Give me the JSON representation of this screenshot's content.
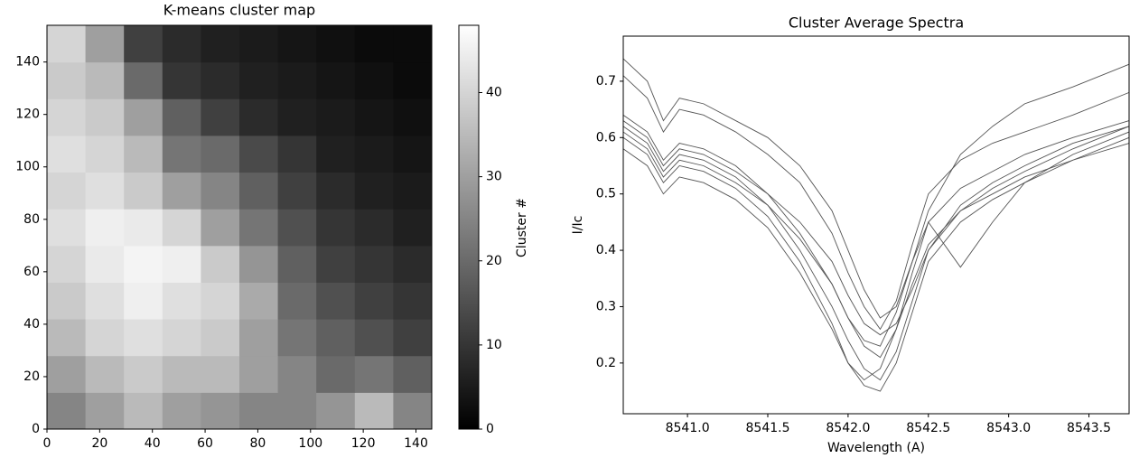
{
  "chart_data": [
    {
      "type": "heatmap",
      "title": "K-means cluster map",
      "colorbar_label": "Cluster #",
      "xlim": [
        0,
        146
      ],
      "ylim": [
        0,
        154
      ],
      "xticks": [
        0,
        20,
        40,
        60,
        80,
        100,
        120,
        140
      ],
      "yticks": [
        0,
        20,
        40,
        60,
        80,
        100,
        120,
        140
      ],
      "clim": [
        0,
        48
      ],
      "cticks": [
        0,
        10,
        20,
        30,
        40
      ],
      "colormap": "gray",
      "values": [
        [
          25,
          30,
          35,
          30,
          28,
          25,
          25,
          28,
          35,
          25
        ],
        [
          30,
          35,
          38,
          35,
          35,
          30,
          25,
          20,
          22,
          18
        ],
        [
          35,
          40,
          42,
          40,
          38,
          30,
          22,
          18,
          15,
          12
        ],
        [
          38,
          42,
          45,
          42,
          40,
          32,
          20,
          15,
          12,
          10
        ],
        [
          40,
          44,
          46,
          45,
          38,
          28,
          18,
          12,
          10,
          8
        ],
        [
          42,
          45,
          44,
          40,
          30,
          22,
          15,
          10,
          8,
          6
        ],
        [
          40,
          42,
          38,
          30,
          25,
          18,
          12,
          8,
          6,
          5
        ],
        [
          42,
          40,
          35,
          22,
          20,
          14,
          10,
          6,
          5,
          4
        ],
        [
          40,
          38,
          30,
          18,
          12,
          8,
          6,
          5,
          4,
          3
        ],
        [
          38,
          35,
          20,
          10,
          8,
          6,
          5,
          4,
          3,
          2
        ],
        [
          40,
          30,
          12,
          8,
          6,
          5,
          4,
          3,
          2,
          2
        ]
      ]
    },
    {
      "type": "line",
      "title": "Cluster Average Spectra",
      "x_label": "Wavelength (A)",
      "y_label": "I/Ic",
      "xlim": [
        8540.6,
        8543.75
      ],
      "ylim": [
        0.11,
        0.78
      ],
      "xticks": [
        {
          "value": 8541.0,
          "label": "8541.0"
        },
        {
          "value": 8541.5,
          "label": "8541.5"
        },
        {
          "value": 8542.0,
          "label": "8542.0"
        },
        {
          "value": 8542.5,
          "label": "8542.5"
        },
        {
          "value": 8543.0,
          "label": "8543.0"
        },
        {
          "value": 8543.5,
          "label": "8543.5"
        }
      ],
      "yticks": [
        0.2,
        0.3,
        0.4,
        0.5,
        0.6,
        0.7
      ],
      "x": [
        8540.6,
        8540.75,
        8540.85,
        8540.95,
        8541.1,
        8541.3,
        8541.5,
        8541.7,
        8541.9,
        8542.0,
        8542.1,
        8542.2,
        8542.3,
        8542.4,
        8542.5,
        8542.7,
        8542.9,
        8543.1,
        8543.4,
        8543.75
      ],
      "series": [
        {
          "color": "#555555",
          "values": [
            0.74,
            0.7,
            0.63,
            0.67,
            0.66,
            0.63,
            0.6,
            0.55,
            0.47,
            0.4,
            0.33,
            0.28,
            0.3,
            0.38,
            0.47,
            0.57,
            0.62,
            0.66,
            0.69,
            0.73
          ]
        },
        {
          "color": "#555555",
          "values": [
            0.71,
            0.67,
            0.61,
            0.65,
            0.64,
            0.61,
            0.57,
            0.52,
            0.43,
            0.36,
            0.3,
            0.26,
            0.31,
            0.41,
            0.5,
            0.56,
            0.59,
            0.61,
            0.64,
            0.68
          ]
        },
        {
          "color": "#555555",
          "values": [
            0.64,
            0.61,
            0.56,
            0.59,
            0.58,
            0.55,
            0.5,
            0.43,
            0.34,
            0.28,
            0.23,
            0.21,
            0.26,
            0.36,
            0.45,
            0.51,
            0.54,
            0.57,
            0.6,
            0.63
          ]
        },
        {
          "color": "#555555",
          "values": [
            0.62,
            0.59,
            0.54,
            0.57,
            0.56,
            0.53,
            0.48,
            0.4,
            0.3,
            0.24,
            0.19,
            0.17,
            0.22,
            0.31,
            0.4,
            0.47,
            0.51,
            0.54,
            0.58,
            0.62
          ]
        },
        {
          "color": "#555555",
          "values": [
            0.6,
            0.57,
            0.52,
            0.55,
            0.54,
            0.51,
            0.46,
            0.38,
            0.27,
            0.2,
            0.16,
            0.15,
            0.2,
            0.29,
            0.38,
            0.45,
            0.49,
            0.52,
            0.56,
            0.6
          ]
        },
        {
          "color": "#555555",
          "values": [
            0.58,
            0.55,
            0.5,
            0.53,
            0.52,
            0.49,
            0.44,
            0.36,
            0.26,
            0.2,
            0.17,
            0.19,
            0.26,
            0.34,
            0.41,
            0.47,
            0.5,
            0.53,
            0.56,
            0.59
          ]
        },
        {
          "color": "#555555",
          "values": [
            0.61,
            0.58,
            0.53,
            0.56,
            0.55,
            0.52,
            0.48,
            0.42,
            0.34,
            0.28,
            0.24,
            0.23,
            0.29,
            0.38,
            0.45,
            0.37,
            0.45,
            0.52,
            0.57,
            0.61
          ]
        },
        {
          "color": "#555555",
          "values": [
            0.63,
            0.6,
            0.55,
            0.58,
            0.57,
            0.54,
            0.5,
            0.45,
            0.38,
            0.32,
            0.27,
            0.25,
            0.27,
            0.33,
            0.4,
            0.48,
            0.52,
            0.55,
            0.59,
            0.62
          ]
        }
      ]
    }
  ]
}
